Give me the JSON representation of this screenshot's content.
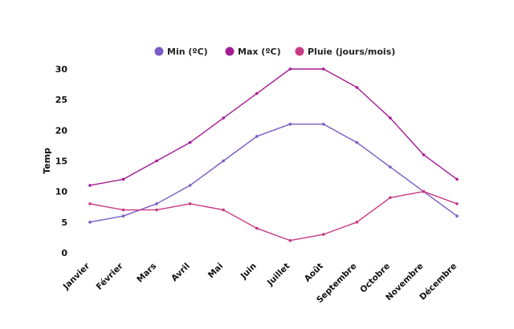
{
  "chart_data": {
    "type": "line",
    "title": "",
    "xlabel": "",
    "ylabel": "Temp",
    "ylim": [
      0,
      30
    ],
    "yticks": [
      0,
      5,
      10,
      15,
      20,
      25,
      30
    ],
    "grid": false,
    "legend": "top-center",
    "categories": [
      "Janvier",
      "Février",
      "Mars",
      "Avril",
      "Mai",
      "Juin",
      "Juillet",
      "Août",
      "Septembre",
      "Octobre",
      "Novembre",
      "Décembre"
    ],
    "series": [
      {
        "name": "Min (ºC)",
        "color": "#7b5cc4",
        "values": [
          5,
          6,
          8,
          11,
          15,
          19,
          21,
          21,
          18,
          14,
          10,
          6
        ]
      },
      {
        "name": "Max (ºC)",
        "color": "#a51c95",
        "values": [
          11,
          12,
          15,
          18,
          22,
          26,
          30,
          30,
          27,
          22,
          16,
          12
        ]
      },
      {
        "name": "Pluie (jours/mois)",
        "color": "#c93a83",
        "values": [
          8,
          7,
          7,
          8,
          7,
          4,
          2,
          3,
          5,
          9,
          10,
          8
        ]
      }
    ]
  }
}
